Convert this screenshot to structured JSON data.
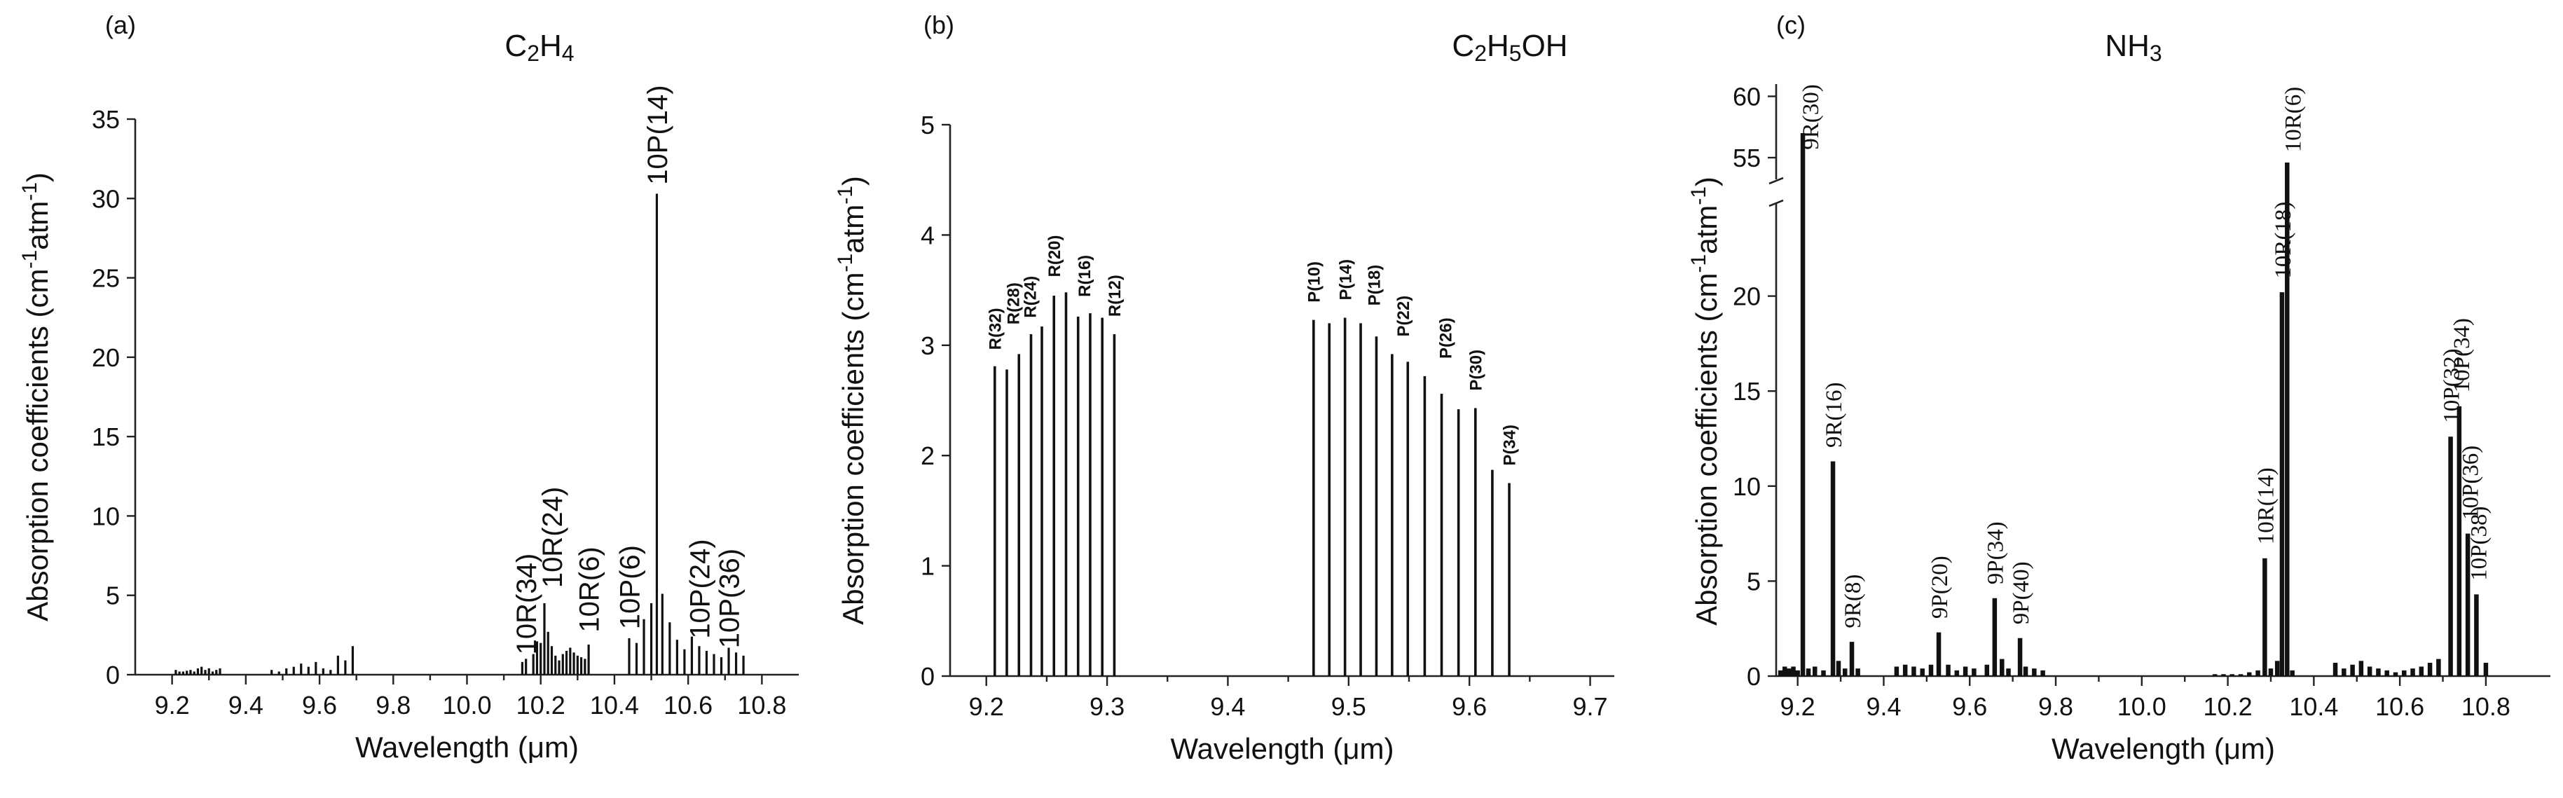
{
  "chart_data": [
    {
      "panel": "(a)",
      "type": "bar",
      "title": "C2H4",
      "title_parts": [
        {
          "t": "C",
          "s": false
        },
        {
          "t": "2",
          "s": true
        },
        {
          "t": "H",
          "s": false
        },
        {
          "t": "4",
          "s": true
        }
      ],
      "xlabel": "Wavelength (μm)",
      "ylabel": "Absorption coefficients (cm-1atm-1)",
      "ylabel_parts": [
        {
          "t": "Absorption coefficients (cm",
          "s": false
        },
        {
          "t": "-1",
          "s": true
        },
        {
          "t": "atm",
          "s": false
        },
        {
          "t": "-1",
          "s": true
        },
        {
          "t": ")",
          "s": false
        }
      ],
      "xlim": [
        9.1,
        10.9
      ],
      "ylim": [
        0,
        35
      ],
      "xticks": [
        9.2,
        9.4,
        9.6,
        9.8,
        10.0,
        10.2,
        10.4,
        10.6,
        10.8
      ],
      "xtick_labels": [
        "9.2",
        "9.4",
        "9.6",
        "9.8",
        "10.0",
        "10.2",
        "10.4",
        "10.6",
        "10.8"
      ],
      "yticks": [
        0,
        5,
        10,
        15,
        20,
        25,
        30,
        35
      ],
      "ytick_labels": [
        "0",
        "5",
        "10",
        "15",
        "20",
        "25",
        "30",
        "35"
      ],
      "bars": [
        {
          "x": 9.21,
          "y": 0.3
        },
        {
          "x": 9.22,
          "y": 0.2
        },
        {
          "x": 9.23,
          "y": 0.2
        },
        {
          "x": 9.24,
          "y": 0.25
        },
        {
          "x": 9.25,
          "y": 0.3
        },
        {
          "x": 9.26,
          "y": 0.2
        },
        {
          "x": 9.27,
          "y": 0.4
        },
        {
          "x": 9.28,
          "y": 0.5
        },
        {
          "x": 9.29,
          "y": 0.3
        },
        {
          "x": 9.3,
          "y": 0.4
        },
        {
          "x": 9.31,
          "y": 0.2
        },
        {
          "x": 9.32,
          "y": 0.3
        },
        {
          "x": 9.33,
          "y": 0.4
        },
        {
          "x": 9.47,
          "y": 0.3
        },
        {
          "x": 9.49,
          "y": 0.2
        },
        {
          "x": 9.51,
          "y": 0.4
        },
        {
          "x": 9.53,
          "y": 0.5
        },
        {
          "x": 9.55,
          "y": 0.7
        },
        {
          "x": 9.57,
          "y": 0.5
        },
        {
          "x": 9.59,
          "y": 0.8
        },
        {
          "x": 9.61,
          "y": 0.4
        },
        {
          "x": 9.63,
          "y": 0.3
        },
        {
          "x": 9.65,
          "y": 1.2
        },
        {
          "x": 9.67,
          "y": 0.9
        },
        {
          "x": 9.69,
          "y": 1.8
        },
        {
          "x": 10.15,
          "y": 0.8
        },
        {
          "x": 10.16,
          "y": 1.0
        },
        {
          "x": 10.18,
          "y": 1.3
        },
        {
          "x": 10.19,
          "y": 2.1
        },
        {
          "x": 10.2,
          "y": 2.0
        },
        {
          "x": 10.21,
          "y": 4.5
        },
        {
          "x": 10.22,
          "y": 2.7
        },
        {
          "x": 10.23,
          "y": 1.8
        },
        {
          "x": 10.24,
          "y": 1.2
        },
        {
          "x": 10.25,
          "y": 0.9
        },
        {
          "x": 10.26,
          "y": 1.3
        },
        {
          "x": 10.27,
          "y": 1.5
        },
        {
          "x": 10.28,
          "y": 1.7
        },
        {
          "x": 10.29,
          "y": 1.4
        },
        {
          "x": 10.3,
          "y": 1.2
        },
        {
          "x": 10.31,
          "y": 1.1
        },
        {
          "x": 10.32,
          "y": 1.0
        },
        {
          "x": 10.33,
          "y": 1.9
        },
        {
          "x": 10.44,
          "y": 2.3
        },
        {
          "x": 10.46,
          "y": 2.0
        },
        {
          "x": 10.48,
          "y": 3.5
        },
        {
          "x": 10.5,
          "y": 4.5
        },
        {
          "x": 10.515,
          "y": 30.3
        },
        {
          "x": 10.53,
          "y": 5.1
        },
        {
          "x": 10.55,
          "y": 3.3
        },
        {
          "x": 10.57,
          "y": 2.2
        },
        {
          "x": 10.59,
          "y": 1.6
        },
        {
          "x": 10.61,
          "y": 2.4
        },
        {
          "x": 10.63,
          "y": 1.8
        },
        {
          "x": 10.65,
          "y": 1.5
        },
        {
          "x": 10.67,
          "y": 1.3
        },
        {
          "x": 10.69,
          "y": 1.1
        },
        {
          "x": 10.71,
          "y": 1.7
        },
        {
          "x": 10.73,
          "y": 1.4
        },
        {
          "x": 10.75,
          "y": 1.2
        }
      ],
      "annotations": [
        {
          "text": "10R(34)",
          "x": 10.16,
          "y": 1.0
        },
        {
          "text": "10R(24)",
          "x": 10.23,
          "y": 5.2
        },
        {
          "text": "10R(6)",
          "x": 10.33,
          "y": 2.4
        },
        {
          "text": "10P(6)",
          "x": 10.44,
          "y": 2.6
        },
        {
          "text": "10P(14)",
          "x": 10.515,
          "y": 30.6
        },
        {
          "text": "10P(24)",
          "x": 10.63,
          "y": 2.0
        },
        {
          "text": "10P(36)",
          "x": 10.71,
          "y": 1.4
        }
      ]
    },
    {
      "panel": "(b)",
      "type": "bar",
      "title": "C2H5OH",
      "title_parts": [
        {
          "t": "C",
          "s": false
        },
        {
          "t": "2",
          "s": true
        },
        {
          "t": "H",
          "s": false
        },
        {
          "t": "5",
          "s": true
        },
        {
          "t": "OH",
          "s": false
        }
      ],
      "xlabel": "Wavelength (μm)",
      "ylabel": "Absorption coefficients (cm-1atm-1)",
      "ylabel_parts": [
        {
          "t": "Absorption coefficients (cm",
          "s": false
        },
        {
          "t": "-1",
          "s": true
        },
        {
          "t": "atm",
          "s": false
        },
        {
          "t": "-1",
          "s": true
        },
        {
          "t": ")",
          "s": false
        }
      ],
      "xlim": [
        9.17,
        9.72
      ],
      "ylim": [
        0,
        5
      ],
      "xticks": [
        9.2,
        9.3,
        9.4,
        9.5,
        9.6,
        9.7
      ],
      "xtick_labels": [
        "9.2",
        "9.3",
        "9.4",
        "9.5",
        "9.6",
        "9.7"
      ],
      "yticks": [
        0,
        1,
        2,
        3,
        4,
        5
      ],
      "ytick_labels": [
        "0",
        "1",
        "2",
        "3",
        "4",
        "5"
      ],
      "bars": [
        {
          "x": 9.207,
          "y": 2.81
        },
        {
          "x": 9.217,
          "y": 2.78
        },
        {
          "x": 9.227,
          "y": 2.92
        },
        {
          "x": 9.237,
          "y": 3.1
        },
        {
          "x": 9.246,
          "y": 3.17
        },
        {
          "x": 9.256,
          "y": 3.45
        },
        {
          "x": 9.266,
          "y": 3.48
        },
        {
          "x": 9.276,
          "y": 3.26
        },
        {
          "x": 9.286,
          "y": 3.29
        },
        {
          "x": 9.296,
          "y": 3.25
        },
        {
          "x": 9.306,
          "y": 3.1
        },
        {
          "x": 9.471,
          "y": 3.23
        },
        {
          "x": 9.484,
          "y": 3.2
        },
        {
          "x": 9.497,
          "y": 3.25
        },
        {
          "x": 9.51,
          "y": 3.2
        },
        {
          "x": 9.523,
          "y": 3.08
        },
        {
          "x": 9.536,
          "y": 2.92
        },
        {
          "x": 9.549,
          "y": 2.85
        },
        {
          "x": 9.563,
          "y": 2.72
        },
        {
          "x": 9.577,
          "y": 2.56
        },
        {
          "x": 9.591,
          "y": 2.42
        },
        {
          "x": 9.605,
          "y": 2.43
        },
        {
          "x": 9.619,
          "y": 1.87
        },
        {
          "x": 9.633,
          "y": 1.75
        }
      ],
      "annotations": [
        {
          "text": "R(32)",
          "x": 9.207,
          "y": 2.92
        },
        {
          "text": "R(28)",
          "x": 9.222,
          "y": 3.15
        },
        {
          "text": "R(24)",
          "x": 9.236,
          "y": 3.21
        },
        {
          "text": "R(20)",
          "x": 9.256,
          "y": 3.58
        },
        {
          "text": "R(16)",
          "x": 9.281,
          "y": 3.4
        },
        {
          "text": "R(12)",
          "x": 9.306,
          "y": 3.22
        },
        {
          "text": "P(10)",
          "x": 9.471,
          "y": 3.35
        },
        {
          "text": "P(14)",
          "x": 9.497,
          "y": 3.37
        },
        {
          "text": "P(18)",
          "x": 9.521,
          "y": 3.32
        },
        {
          "text": "P(22)",
          "x": 9.545,
          "y": 3.04
        },
        {
          "text": "P(26)",
          "x": 9.58,
          "y": 2.84
        },
        {
          "text": "P(30)",
          "x": 9.605,
          "y": 2.55
        },
        {
          "text": "P(34)",
          "x": 9.633,
          "y": 1.87
        }
      ]
    },
    {
      "panel": "(c)",
      "type": "bar",
      "title": "NH3",
      "title_parts": [
        {
          "t": "NH",
          "s": false
        },
        {
          "t": "3",
          "s": true
        }
      ],
      "xlabel": "Wavelength (μm)",
      "ylabel": "Absorption coefficients (cm-1atm-1)",
      "ylabel_parts": [
        {
          "t": "Absorption coefficients (cm",
          "s": false
        },
        {
          "t": "-1",
          "s": true
        },
        {
          "t": "atm",
          "s": false
        },
        {
          "t": "-1",
          "s": true
        },
        {
          "t": ")",
          "s": false
        }
      ],
      "xlim": [
        9.15,
        10.95
      ],
      "ylim": [
        0,
        61
      ],
      "axis_break": {
        "from": 25,
        "to": 53
      },
      "xticks": [
        9.2,
        9.4,
        9.6,
        9.8,
        10.0,
        10.2,
        10.4,
        10.6,
        10.8
      ],
      "xtick_labels": [
        "9.2",
        "9.4",
        "9.6",
        "9.8",
        "10.0",
        "10.2",
        "10.4",
        "10.6",
        "10.8"
      ],
      "yticks": [
        0,
        5,
        10,
        15,
        20,
        55,
        60
      ],
      "ytick_labels": [
        "0",
        "5",
        "10",
        "15",
        "20",
        "55",
        "60"
      ],
      "bars": [
        {
          "x": 9.16,
          "y": 0.3
        },
        {
          "x": 9.17,
          "y": 0.5
        },
        {
          "x": 9.18,
          "y": 0.4
        },
        {
          "x": 9.19,
          "y": 0.5
        },
        {
          "x": 9.2,
          "y": 0.3
        },
        {
          "x": 9.212,
          "y": 57.0
        },
        {
          "x": 9.225,
          "y": 0.4
        },
        {
          "x": 9.24,
          "y": 0.5
        },
        {
          "x": 9.26,
          "y": 0.3
        },
        {
          "x": 9.282,
          "y": 11.3
        },
        {
          "x": 9.295,
          "y": 0.8
        },
        {
          "x": 9.31,
          "y": 0.4
        },
        {
          "x": 9.326,
          "y": 1.8
        },
        {
          "x": 9.34,
          "y": 0.4
        },
        {
          "x": 9.43,
          "y": 0.5
        },
        {
          "x": 9.45,
          "y": 0.6
        },
        {
          "x": 9.47,
          "y": 0.5
        },
        {
          "x": 9.49,
          "y": 0.4
        },
        {
          "x": 9.51,
          "y": 0.6
        },
        {
          "x": 9.528,
          "y": 2.3
        },
        {
          "x": 9.55,
          "y": 0.6
        },
        {
          "x": 9.57,
          "y": 0.3
        },
        {
          "x": 9.59,
          "y": 0.5
        },
        {
          "x": 9.61,
          "y": 0.4
        },
        {
          "x": 9.64,
          "y": 0.6
        },
        {
          "x": 9.658,
          "y": 4.1
        },
        {
          "x": 9.675,
          "y": 0.9
        },
        {
          "x": 9.69,
          "y": 0.4
        },
        {
          "x": 9.717,
          "y": 2.0
        },
        {
          "x": 9.73,
          "y": 0.5
        },
        {
          "x": 9.75,
          "y": 0.4
        },
        {
          "x": 9.77,
          "y": 0.3
        },
        {
          "x": 10.17,
          "y": 0.1
        },
        {
          "x": 10.19,
          "y": 0.1
        },
        {
          "x": 10.21,
          "y": 0.1
        },
        {
          "x": 10.23,
          "y": 0.1
        },
        {
          "x": 10.25,
          "y": 0.2
        },
        {
          "x": 10.27,
          "y": 0.3
        },
        {
          "x": 10.286,
          "y": 6.2
        },
        {
          "x": 10.3,
          "y": 0.4
        },
        {
          "x": 10.315,
          "y": 0.8
        },
        {
          "x": 10.326,
          "y": 20.2
        },
        {
          "x": 10.338,
          "y": 54.6
        },
        {
          "x": 10.35,
          "y": 0.3
        },
        {
          "x": 10.45,
          "y": 0.7
        },
        {
          "x": 10.47,
          "y": 0.4
        },
        {
          "x": 10.49,
          "y": 0.6
        },
        {
          "x": 10.51,
          "y": 0.8
        },
        {
          "x": 10.53,
          "y": 0.5
        },
        {
          "x": 10.55,
          "y": 0.4
        },
        {
          "x": 10.57,
          "y": 0.3
        },
        {
          "x": 10.59,
          "y": 0.2
        },
        {
          "x": 10.61,
          "y": 0.3
        },
        {
          "x": 10.63,
          "y": 0.4
        },
        {
          "x": 10.65,
          "y": 0.5
        },
        {
          "x": 10.67,
          "y": 0.7
        },
        {
          "x": 10.69,
          "y": 0.9
        },
        {
          "x": 10.718,
          "y": 12.6
        },
        {
          "x": 10.738,
          "y": 14.2
        },
        {
          "x": 10.758,
          "y": 7.5
        },
        {
          "x": 10.778,
          "y": 4.3
        },
        {
          "x": 10.8,
          "y": 0.7
        }
      ],
      "annotations": [
        {
          "text": "9R(30)",
          "x": 9.228,
          "y": 55.3
        },
        {
          "text": "9R(16)",
          "x": 9.282,
          "y": 11.8
        },
        {
          "text": "9R(8)",
          "x": 9.326,
          "y": 2.3
        },
        {
          "text": "9P(20)",
          "x": 9.528,
          "y": 2.8
        },
        {
          "text": "9P(34)",
          "x": 9.658,
          "y": 4.6
        },
        {
          "text": "9P(40)",
          "x": 9.717,
          "y": 2.5
        },
        {
          "text": "10R(14)",
          "x": 10.286,
          "y": 6.7
        },
        {
          "text": "10R(18)",
          "x": 10.326,
          "y": 20.7
        },
        {
          "text": "10R(6)",
          "x": 10.35,
          "y": 55.1
        },
        {
          "text": "10P(32)",
          "x": 10.718,
          "y": 13.1
        },
        {
          "text": "10P(34)",
          "x": 10.742,
          "y": 14.7
        },
        {
          "text": "10P(36)",
          "x": 10.762,
          "y": 8.0
        },
        {
          "text": "10P(38)",
          "x": 10.782,
          "y": 4.8
        }
      ]
    }
  ]
}
